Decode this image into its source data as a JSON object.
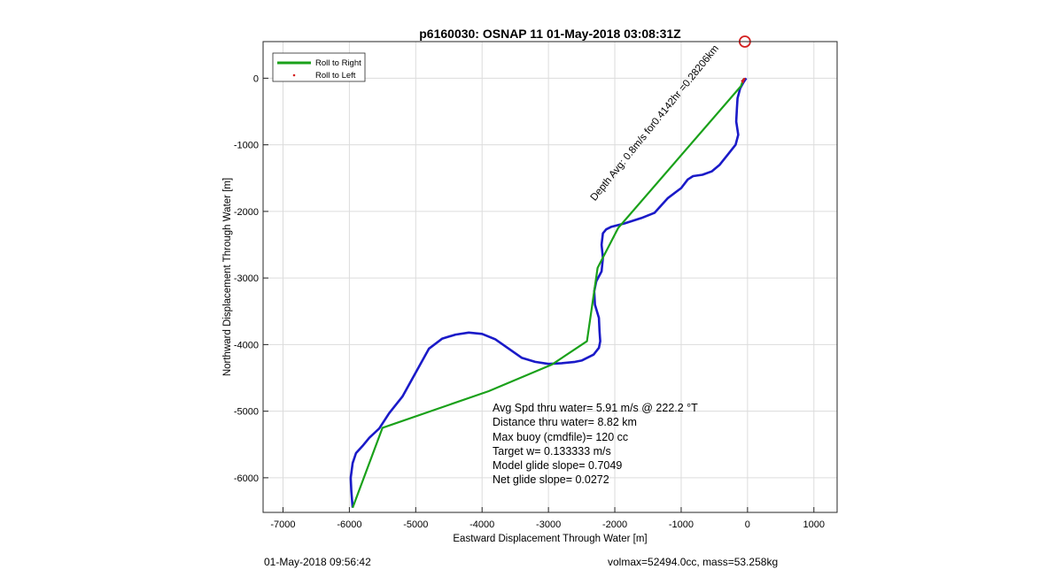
{
  "chart_data": {
    "type": "line",
    "title": "p6160030: OSNAP 11 01-May-2018 03:08:31Z",
    "xlabel": "Eastward Displacement Through Water [m]",
    "ylabel": "Northward Displacement Through Water [m]",
    "xlim": [
      -7300,
      1350
    ],
    "ylim": [
      -6520,
      550
    ],
    "xticks": [
      -7000,
      -6000,
      -5000,
      -4000,
      -3000,
      -2000,
      -1000,
      0,
      1000
    ],
    "yticks": [
      0,
      -1000,
      -2000,
      -3000,
      -4000,
      -5000,
      -6000
    ],
    "grid": true,
    "legend_position": "top-left",
    "series": [
      {
        "name": "Roll to Right",
        "color": "#1aa11a",
        "x": [
          -60,
          -100,
          -1950,
          -2260,
          -2420,
          -2950,
          -3900,
          -5500,
          -5950
        ],
        "y": [
          -10,
          -120,
          -2250,
          -2850,
          -3950,
          -4300,
          -4700,
          -5250,
          -6450
        ]
      },
      {
        "name": "Roll to Left",
        "color": "#d42020",
        "x": [
          -50,
          -60,
          -80,
          -70
        ],
        "y": [
          -10,
          -25,
          -40,
          -55
        ]
      }
    ],
    "track": {
      "color": "#1a1ac8",
      "x": [
        -20,
        -60,
        -110,
        -150,
        -160,
        -170,
        -140,
        -180,
        -300,
        -420,
        -540,
        -680,
        -820,
        -900,
        -1000,
        -1200,
        -1400,
        -1600,
        -1850,
        -2050,
        -2130,
        -2180,
        -2200,
        -2180,
        -2200,
        -2280,
        -2310,
        -2300,
        -2240,
        -2230,
        -2220,
        -2240,
        -2320,
        -2420,
        -2500,
        -2600,
        -2800,
        -3000,
        -3200,
        -3400,
        -3600,
        -3800,
        -4000,
        -4200,
        -4400,
        -4600,
        -4800,
        -5000,
        -5200,
        -5400,
        -5550,
        -5700,
        -5800,
        -5900,
        -5950,
        -5980,
        -5970,
        -5950
      ],
      "y": [
        0,
        -60,
        -150,
        -300,
        -450,
        -650,
        -850,
        -1000,
        -1150,
        -1300,
        -1400,
        -1450,
        -1470,
        -1520,
        -1650,
        -1800,
        -2020,
        -2100,
        -2180,
        -2230,
        -2270,
        -2330,
        -2500,
        -2700,
        -2900,
        -3050,
        -3200,
        -3400,
        -3600,
        -3800,
        -3950,
        -4050,
        -4150,
        -4200,
        -4240,
        -4260,
        -4280,
        -4290,
        -4260,
        -4200,
        -4060,
        -3920,
        -3840,
        -3820,
        -3850,
        -3910,
        -4060,
        -4420,
        -4780,
        -5030,
        -5260,
        -5400,
        -5520,
        -5630,
        -5780,
        -6000,
        -6200,
        -6450
      ]
    },
    "current_marker": {
      "x": -40,
      "y": 550,
      "color": "#d42020"
    },
    "annotation": {
      "text": "Depth Avg: 0.8m/s for0.4142hr =0.28206km",
      "x": -2300,
      "y": -1850,
      "rotation": -51
    }
  },
  "legend": {
    "roll_right": "Roll to Right",
    "roll_left": "Roll to Left"
  },
  "stats": {
    "avg_speed": "Avg Spd thru water=  5.91 m/s @ 222.2 °T",
    "distance": "Distance thru water=  8.82 km",
    "max_buoy": "Max buoy (cmdfile)= 120 cc",
    "target_w": "Target w= 0.133333 m/s",
    "model_glide": "Model glide slope= 0.7049",
    "net_glide": "Net glide slope= 0.0272"
  },
  "footer": {
    "timestamp": "01-May-2018 09:56:42",
    "volmax_mass": "volmax=52494.0cc, mass=53.258kg"
  }
}
